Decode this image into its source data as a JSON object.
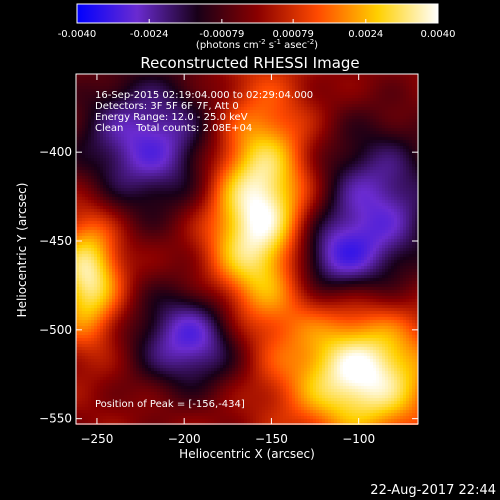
{
  "chart_data": {
    "type": "heatmap",
    "title": "Reconstructed RHESSI Image",
    "xlabel": "Heliocentric X (arcsec)",
    "ylabel": "Heliocentric Y (arcsec)",
    "xlim": [
      -262,
      -66
    ],
    "ylim": [
      -553,
      -356
    ],
    "x_ticks": [
      -250,
      -200,
      -150,
      -100
    ],
    "y_ticks": [
      -400,
      -450,
      -500,
      -550
    ],
    "colorbar": {
      "range": [
        -0.004,
        0.004
      ],
      "tick_values": [
        -0.004,
        -0.0024,
        -0.00079,
        0.00079,
        0.0024,
        0.004
      ],
      "tick_labels": [
        "-0.0040",
        "-0.0024",
        "-0.00079",
        "0.00079",
        "0.0024",
        "0.0040"
      ],
      "label_parts": [
        "(photons cm",
        "-2",
        " s",
        "-1",
        " asec",
        "-2",
        ")"
      ],
      "colormap": [
        "#0000ff",
        "#6a2bd0",
        "#180018",
        "#8a0000",
        "#ff4a00",
        "#ffd000",
        "#ffffff"
      ]
    },
    "info_lines": [
      "16-Sep-2015 02:19:04.000 to 02:29:04.000",
      "Detectors: 3F 5F 6F 7F, Att 0",
      "Energy Range: 12.0 - 25.0 keV",
      "Clean    Total counts: 2.08E+04"
    ],
    "peak_text": "Position of Peak = [-156,-434]",
    "peak": [
      -156,
      -434
    ],
    "blobs": [
      {
        "x": -157,
        "y": -435,
        "amp": 1.0,
        "sx": 20,
        "sy": 45
      },
      {
        "x": -98,
        "y": -525,
        "amp": 0.95,
        "sx": 28,
        "sy": 25
      },
      {
        "x": -255,
        "y": -470,
        "amp": 0.82,
        "sx": 13,
        "sy": 25
      },
      {
        "x": -195,
        "y": -505,
        "amp": -0.7,
        "sx": 23,
        "sy": 20
      },
      {
        "x": -220,
        "y": -395,
        "amp": -0.65,
        "sx": 30,
        "sy": 28
      },
      {
        "x": -90,
        "y": -430,
        "amp": -0.6,
        "sx": 26,
        "sy": 32
      },
      {
        "x": -118,
        "y": -460,
        "amp": -0.5,
        "sx": 20,
        "sy": 15
      }
    ]
  },
  "footer": {
    "timestamp": "22-Aug-2017 22:44"
  }
}
